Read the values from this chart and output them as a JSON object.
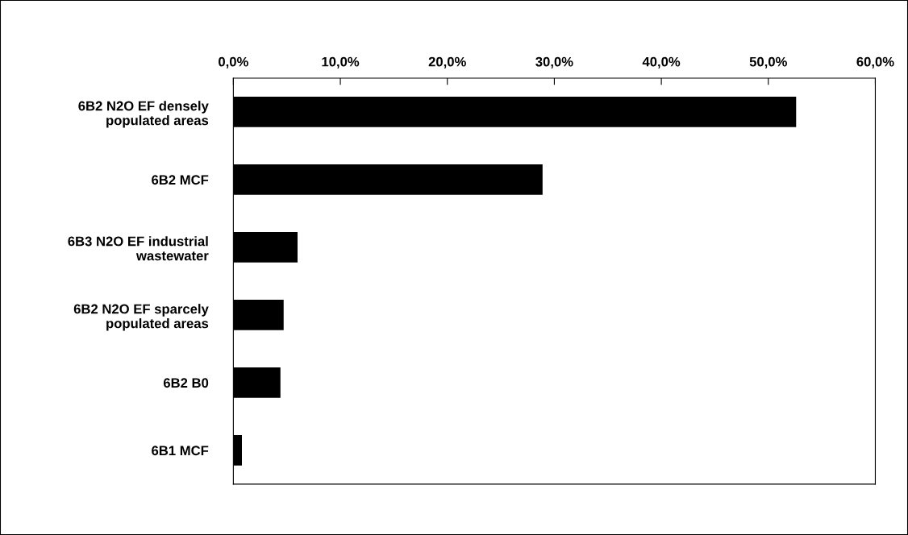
{
  "chart_data": {
    "type": "bar",
    "orientation": "horizontal",
    "categories": [
      "6B2 N2O EF densely\npopulated areas",
      "6B2 MCF",
      "6B3 N2O EF industrial\nwastewater",
      "6B2 N2O EF sparcely\npopulated areas",
      "6B2 B0",
      "6B1 MCF"
    ],
    "values": [
      52.6,
      28.9,
      6.0,
      4.7,
      4.4,
      0.8
    ],
    "color": "#000000",
    "xlim": [
      0,
      60
    ],
    "xticks": [
      {
        "value": 0,
        "label": "0,0%"
      },
      {
        "value": 10,
        "label": "10,0%"
      },
      {
        "value": 20,
        "label": "20,0%"
      },
      {
        "value": 30,
        "label": "30,0%"
      },
      {
        "value": 40,
        "label": "40,0%"
      },
      {
        "value": 50,
        "label": "50,0%"
      },
      {
        "value": 60,
        "label": "60,0%"
      }
    ],
    "grid": false,
    "legend": false
  }
}
